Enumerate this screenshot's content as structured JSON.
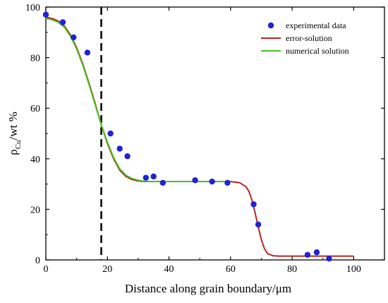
{
  "chart_data": {
    "type": "scatter",
    "title": "",
    "xlabel": "Distance along grain boundary/μm",
    "ylabel_main": "ρ",
    "ylabel_sub": "Cu",
    "ylabel_rest": "/wt %",
    "xlim": [
      0,
      110
    ],
    "ylim": [
      0,
      100
    ],
    "xticks": [
      0,
      20,
      40,
      60,
      80,
      100
    ],
    "yticks": [
      0,
      20,
      40,
      60,
      80,
      100
    ],
    "grid": false,
    "legend_position": "top-right",
    "vertical_marker_x": 18,
    "series": [
      {
        "name": "experimental data",
        "kind": "points",
        "color": "#1f22d6",
        "x": [
          0,
          5.5,
          9,
          13.5,
          21,
          24,
          26.5,
          32.5,
          35,
          38,
          48.5,
          54,
          59,
          67.5,
          69,
          85,
          88,
          92
        ],
        "y": [
          97,
          94,
          88,
          82,
          50,
          44,
          41,
          32.5,
          33,
          30.5,
          31.5,
          31,
          30.5,
          22,
          14,
          2,
          3,
          0.5
        ]
      },
      {
        "name": "error-solution",
        "kind": "line",
        "color": "#b5271e",
        "x": [
          0,
          2,
          4,
          6,
          8,
          10,
          12,
          14,
          16,
          18,
          20,
          22,
          24,
          26,
          28,
          30,
          32,
          34,
          36,
          40,
          45,
          50,
          55,
          60,
          63,
          65,
          66,
          67,
          68,
          69,
          70,
          71,
          72,
          74,
          76,
          80,
          85,
          90,
          95,
          100
        ],
        "y": [
          96,
          95.5,
          94.5,
          92.5,
          89,
          84,
          77.5,
          70,
          62,
          53.5,
          46,
          40,
          35.5,
          33,
          31.8,
          31.2,
          31,
          31,
          31,
          31,
          31,
          31,
          31,
          31,
          30.5,
          29,
          27,
          23.5,
          18.5,
          13,
          8,
          4.5,
          2.5,
          1.6,
          1.5,
          1.5,
          1.5,
          1.5,
          1.5,
          1.5
        ]
      },
      {
        "name": "numerical solution",
        "kind": "line",
        "color": "#45c21e",
        "x": [
          0,
          2,
          4,
          6,
          8,
          10,
          12,
          14,
          16,
          18,
          20,
          22,
          24,
          26,
          28,
          30,
          32,
          34,
          36,
          40,
          45,
          50,
          55,
          60
        ],
        "y": [
          95.5,
          95,
          94,
          92,
          88.5,
          83.5,
          77,
          69.5,
          61.5,
          53.5,
          46.5,
          40.5,
          36,
          33.5,
          32.2,
          31.5,
          31.1,
          31,
          31,
          31,
          31,
          31,
          31,
          31
        ]
      }
    ]
  }
}
